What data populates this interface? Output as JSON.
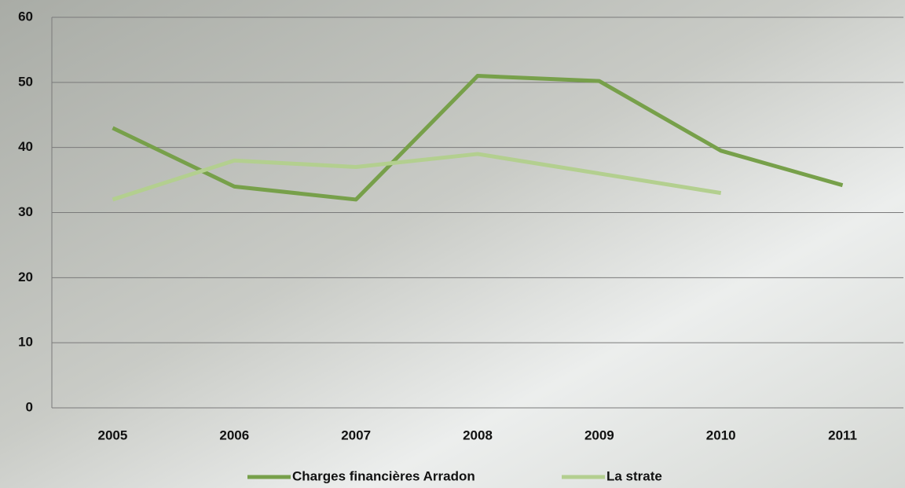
{
  "chart_data": {
    "type": "line",
    "categories": [
      "2005",
      "2006",
      "2007",
      "2008",
      "2009",
      "2010",
      "2011"
    ],
    "series": [
      {
        "name": "Charges financières Arradon",
        "color": "#77a04a",
        "values": [
          43,
          34,
          32,
          51,
          50.2,
          39.5,
          34.2
        ]
      },
      {
        "name": "La strate",
        "color": "#b3cf8f",
        "values": [
          32,
          38,
          37,
          39,
          36,
          33,
          null
        ]
      }
    ],
    "ylim": [
      0,
      60
    ],
    "yticks": [
      0,
      10,
      20,
      30,
      40,
      50,
      60
    ],
    "grid": true,
    "legend": "bottom"
  }
}
